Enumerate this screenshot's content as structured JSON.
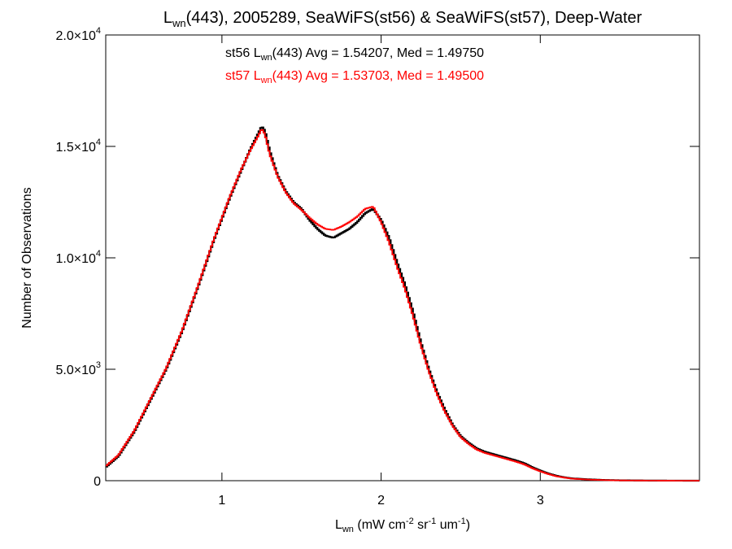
{
  "chart_data": {
    "type": "line",
    "title": {
      "prefix": "L",
      "sub": "wn",
      "rest": "(443), 2005289, SeaWiFS(st56) & SeaWiFS(st57), Deep-Water"
    },
    "xlabel": {
      "base": "L",
      "base_sub": "wn",
      "open": " (mW cm",
      "sup1": "-2",
      "mid": " sr",
      "sup2": "-1",
      "mid2": " um",
      "sup3": "-1",
      "close": ")"
    },
    "ylabel": "Number of Observations",
    "xlim": [
      0.27,
      4.0
    ],
    "ylim": [
      0,
      20000
    ],
    "x_ticks": [
      {
        "value": 1,
        "label": "1"
      },
      {
        "value": 2,
        "label": "2"
      },
      {
        "value": 3,
        "label": "3"
      }
    ],
    "y_ticks": [
      {
        "value": 0,
        "mant": "0",
        "exp": ""
      },
      {
        "value": 5000,
        "mant": "5.0×10",
        "exp": "3"
      },
      {
        "value": 10000,
        "mant": "1.0×10",
        "exp": "4"
      },
      {
        "value": 15000,
        "mant": "1.5×10",
        "exp": "4"
      },
      {
        "value": 20000,
        "mant": "2.0×10",
        "exp": "4"
      }
    ],
    "grid": false,
    "legend_position": "top-center",
    "series": [
      {
        "name": "st56",
        "color": "#000000",
        "legend": {
          "pre": "st56 L",
          "sub": "wn",
          "post": "(443) Avg = 1.54207, Med = 1.49750"
        },
        "x": [
          0.27,
          0.35,
          0.45,
          0.55,
          0.65,
          0.75,
          0.85,
          0.95,
          1.05,
          1.12,
          1.18,
          1.23,
          1.25,
          1.27,
          1.3,
          1.35,
          1.4,
          1.45,
          1.5,
          1.55,
          1.6,
          1.65,
          1.7,
          1.75,
          1.8,
          1.85,
          1.9,
          1.95,
          2.0,
          2.05,
          2.1,
          2.15,
          2.2,
          2.25,
          2.3,
          2.35,
          2.4,
          2.45,
          2.5,
          2.55,
          2.6,
          2.65,
          2.7,
          2.75,
          2.8,
          2.85,
          2.9,
          2.95,
          3.0,
          3.05,
          3.1,
          3.15,
          3.2,
          3.3,
          3.4,
          3.5,
          3.7,
          3.85,
          4.0
        ],
        "y": [
          600,
          1100,
          2200,
          3600,
          5000,
          6700,
          8700,
          10800,
          12700,
          13900,
          14900,
          15600,
          15900,
          15700,
          14800,
          13700,
          13000,
          12500,
          12200,
          11700,
          11300,
          11000,
          10900,
          11100,
          11300,
          11600,
          12000,
          12200,
          11700,
          10900,
          9800,
          8800,
          7600,
          6200,
          5000,
          4000,
          3200,
          2500,
          2000,
          1700,
          1450,
          1300,
          1200,
          1100,
          1000,
          900,
          780,
          600,
          450,
          320,
          220,
          150,
          100,
          60,
          30,
          15,
          5,
          2,
          0
        ]
      },
      {
        "name": "st57",
        "color": "#ff0000",
        "legend": {
          "pre": "st57 L",
          "sub": "wn",
          "post": "(443) Avg = 1.53703, Med = 1.49500"
        },
        "x": [
          0.27,
          0.35,
          0.45,
          0.55,
          0.65,
          0.75,
          0.85,
          0.95,
          1.05,
          1.12,
          1.18,
          1.23,
          1.25,
          1.27,
          1.3,
          1.35,
          1.4,
          1.45,
          1.5,
          1.55,
          1.6,
          1.65,
          1.7,
          1.75,
          1.8,
          1.85,
          1.9,
          1.95,
          2.0,
          2.05,
          2.1,
          2.15,
          2.2,
          2.25,
          2.3,
          2.35,
          2.4,
          2.45,
          2.5,
          2.55,
          2.6,
          2.65,
          2.7,
          2.75,
          2.8,
          2.85,
          2.9,
          2.95,
          3.0,
          3.05,
          3.1,
          3.15,
          3.2,
          3.3,
          3.4,
          3.5,
          3.7,
          3.85,
          4.0
        ],
        "y": [
          650,
          1150,
          2250,
          3650,
          5050,
          6750,
          8750,
          10850,
          12750,
          13950,
          14850,
          15500,
          15800,
          15550,
          14650,
          13650,
          12950,
          12450,
          12150,
          11800,
          11500,
          11300,
          11250,
          11400,
          11600,
          11850,
          12200,
          12300,
          11600,
          10700,
          9600,
          8600,
          7400,
          6050,
          4900,
          3900,
          3100,
          2450,
          1950,
          1650,
          1400,
          1250,
          1150,
          1050,
          950,
          850,
          730,
          560,
          420,
          300,
          200,
          140,
          90,
          50,
          25,
          12,
          4,
          1,
          0
        ]
      }
    ]
  }
}
